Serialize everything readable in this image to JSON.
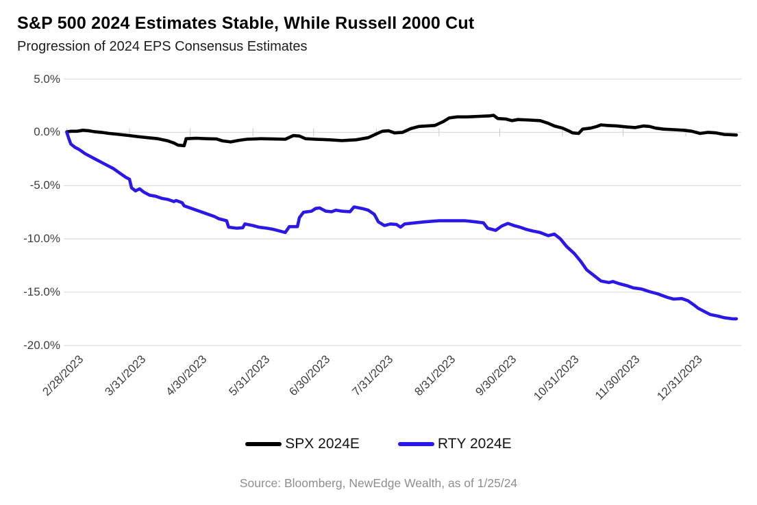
{
  "chart_data": {
    "type": "line",
    "title": "S&P 500 2024 Estimates Stable, While Russell 2000 Cut",
    "subtitle": "Progression of 2024 EPS Consensus Estimates",
    "x_axis": {
      "tick_labels": [
        "2/28/2023",
        "3/31/2023",
        "4/30/2023",
        "5/31/2023",
        "6/30/2023",
        "7/31/2023",
        "8/31/2023",
        "9/30/2023",
        "10/31/2023",
        "11/30/2023",
        "12/31/2023"
      ],
      "tick_day_offsets": [
        0,
        31,
        61,
        92,
        122,
        153,
        184,
        214,
        245,
        275,
        306
      ],
      "start_date": "2/28/2023",
      "end_date": "1/25/2024",
      "end_day_offset": 331
    },
    "y_axis": {
      "tick_labels": [
        "5.0%",
        "0.0%",
        "-5.0%",
        "-10.0%",
        "-15.0%",
        "-20.0%"
      ],
      "tick_values": [
        5,
        0,
        -5,
        -10,
        -15,
        -20
      ],
      "unit": "%",
      "min": -20,
      "max": 5
    },
    "grid": {
      "horizontal": true,
      "color": "#dcdcdc",
      "tick_color": "#c9c9c9"
    },
    "legend_position": "bottom",
    "series": [
      {
        "name": "SPX 2024E",
        "color": "#000000",
        "points": [
          [
            0,
            0.05
          ],
          [
            2,
            0.1
          ],
          [
            5,
            0.1
          ],
          [
            8,
            0.2
          ],
          [
            11,
            0.15
          ],
          [
            14,
            0.05
          ],
          [
            17,
            0.0
          ],
          [
            21,
            -0.1
          ],
          [
            26,
            -0.2
          ],
          [
            31,
            -0.3
          ],
          [
            35,
            -0.4
          ],
          [
            40,
            -0.5
          ],
          [
            45,
            -0.6
          ],
          [
            50,
            -0.8
          ],
          [
            53,
            -1.0
          ],
          [
            55,
            -1.2
          ],
          [
            58,
            -1.25
          ],
          [
            59,
            -0.6
          ],
          [
            64,
            -0.55
          ],
          [
            69,
            -0.6
          ],
          [
            74,
            -0.62
          ],
          [
            77,
            -0.8
          ],
          [
            81,
            -0.9
          ],
          [
            85,
            -0.75
          ],
          [
            89,
            -0.65
          ],
          [
            96,
            -0.6
          ],
          [
            102,
            -0.62
          ],
          [
            108,
            -0.65
          ],
          [
            112,
            -0.3
          ],
          [
            115,
            -0.35
          ],
          [
            118,
            -0.6
          ],
          [
            123,
            -0.65
          ],
          [
            130,
            -0.7
          ],
          [
            136,
            -0.78
          ],
          [
            143,
            -0.7
          ],
          [
            149,
            -0.5
          ],
          [
            153,
            -0.15
          ],
          [
            156,
            0.1
          ],
          [
            159,
            0.15
          ],
          [
            162,
            -0.05
          ],
          [
            166,
            0.0
          ],
          [
            170,
            0.35
          ],
          [
            174,
            0.55
          ],
          [
            178,
            0.6
          ],
          [
            182,
            0.65
          ],
          [
            186,
            1.0
          ],
          [
            189,
            1.35
          ],
          [
            193,
            1.45
          ],
          [
            198,
            1.45
          ],
          [
            204,
            1.5
          ],
          [
            209,
            1.55
          ],
          [
            211,
            1.6
          ],
          [
            213,
            1.3
          ],
          [
            217,
            1.25
          ],
          [
            220,
            1.1
          ],
          [
            223,
            1.2
          ],
          [
            229,
            1.15
          ],
          [
            234,
            1.1
          ],
          [
            238,
            0.85
          ],
          [
            241,
            0.6
          ],
          [
            245,
            0.4
          ],
          [
            248,
            0.15
          ],
          [
            250,
            -0.05
          ],
          [
            253,
            -0.1
          ],
          [
            255,
            0.3
          ],
          [
            259,
            0.4
          ],
          [
            262,
            0.55
          ],
          [
            264,
            0.7
          ],
          [
            267,
            0.65
          ],
          [
            272,
            0.6
          ],
          [
            277,
            0.5
          ],
          [
            281,
            0.45
          ],
          [
            285,
            0.6
          ],
          [
            288,
            0.55
          ],
          [
            291,
            0.4
          ],
          [
            295,
            0.3
          ],
          [
            300,
            0.25
          ],
          [
            305,
            0.2
          ],
          [
            309,
            0.1
          ],
          [
            313,
            -0.1
          ],
          [
            317,
            0.0
          ],
          [
            321,
            -0.05
          ],
          [
            325,
            -0.2
          ],
          [
            328,
            -0.22
          ],
          [
            331,
            -0.25
          ]
        ]
      },
      {
        "name": "RTY 2024E",
        "color": "#2a18e8",
        "points": [
          [
            0,
            0.0
          ],
          [
            1,
            -0.6
          ],
          [
            2,
            -1.1
          ],
          [
            4,
            -1.4
          ],
          [
            6,
            -1.6
          ],
          [
            9,
            -2.0
          ],
          [
            13,
            -2.4
          ],
          [
            16,
            -2.7
          ],
          [
            19,
            -3.0
          ],
          [
            23,
            -3.4
          ],
          [
            26,
            -3.8
          ],
          [
            29,
            -4.2
          ],
          [
            31,
            -4.4
          ],
          [
            32,
            -5.2
          ],
          [
            34,
            -5.5
          ],
          [
            36,
            -5.3
          ],
          [
            38,
            -5.6
          ],
          [
            41,
            -5.9
          ],
          [
            44,
            -6.0
          ],
          [
            47,
            -6.2
          ],
          [
            50,
            -6.3
          ],
          [
            53,
            -6.5
          ],
          [
            54,
            -6.4
          ],
          [
            57,
            -6.6
          ],
          [
            58,
            -6.9
          ],
          [
            61,
            -7.1
          ],
          [
            64,
            -7.3
          ],
          [
            67,
            -7.5
          ],
          [
            70,
            -7.7
          ],
          [
            73,
            -7.9
          ],
          [
            75,
            -8.1
          ],
          [
            79,
            -8.3
          ],
          [
            80,
            -8.9
          ],
          [
            84,
            -9.0
          ],
          [
            87,
            -8.95
          ],
          [
            88,
            -8.6
          ],
          [
            92,
            -8.75
          ],
          [
            95,
            -8.9
          ],
          [
            99,
            -9.0
          ],
          [
            102,
            -9.1
          ],
          [
            106,
            -9.3
          ],
          [
            108,
            -9.4
          ],
          [
            110,
            -8.85
          ],
          [
            114,
            -8.85
          ],
          [
            115,
            -8.0
          ],
          [
            117,
            -7.5
          ],
          [
            121,
            -7.4
          ],
          [
            123,
            -7.15
          ],
          [
            125,
            -7.1
          ],
          [
            128,
            -7.4
          ],
          [
            131,
            -7.45
          ],
          [
            133,
            -7.3
          ],
          [
            136,
            -7.4
          ],
          [
            140,
            -7.45
          ],
          [
            142,
            -7.0
          ],
          [
            146,
            -7.15
          ],
          [
            149,
            -7.3
          ],
          [
            152,
            -7.7
          ],
          [
            154,
            -8.4
          ],
          [
            157,
            -8.75
          ],
          [
            160,
            -8.6
          ],
          [
            163,
            -8.65
          ],
          [
            165,
            -8.9
          ],
          [
            167,
            -8.6
          ],
          [
            172,
            -8.5
          ],
          [
            177,
            -8.4
          ],
          [
            184,
            -8.3
          ],
          [
            190,
            -8.3
          ],
          [
            197,
            -8.3
          ],
          [
            202,
            -8.4
          ],
          [
            206,
            -8.5
          ],
          [
            208,
            -9.0
          ],
          [
            212,
            -9.2
          ],
          [
            215,
            -8.8
          ],
          [
            218,
            -8.55
          ],
          [
            221,
            -8.75
          ],
          [
            224,
            -8.9
          ],
          [
            227,
            -9.1
          ],
          [
            230,
            -9.25
          ],
          [
            234,
            -9.4
          ],
          [
            238,
            -9.7
          ],
          [
            241,
            -9.55
          ],
          [
            244,
            -10.0
          ],
          [
            247,
            -10.7
          ],
          [
            251,
            -11.4
          ],
          [
            254,
            -12.1
          ],
          [
            257,
            -12.9
          ],
          [
            261,
            -13.5
          ],
          [
            264,
            -13.95
          ],
          [
            268,
            -14.1
          ],
          [
            270,
            -14.0
          ],
          [
            273,
            -14.2
          ],
          [
            277,
            -14.4
          ],
          [
            280,
            -14.6
          ],
          [
            284,
            -14.7
          ],
          [
            288,
            -14.95
          ],
          [
            292,
            -15.15
          ],
          [
            297,
            -15.5
          ],
          [
            300,
            -15.65
          ],
          [
            304,
            -15.6
          ],
          [
            307,
            -15.8
          ],
          [
            310,
            -16.2
          ],
          [
            312,
            -16.5
          ],
          [
            315,
            -16.8
          ],
          [
            318,
            -17.1
          ],
          [
            322,
            -17.25
          ],
          [
            325,
            -17.4
          ],
          [
            329,
            -17.5
          ],
          [
            331,
            -17.5
          ]
        ]
      }
    ]
  },
  "footer": {
    "source": "Source: Bloomberg, NewEdge Wealth, as of 1/25/24"
  }
}
